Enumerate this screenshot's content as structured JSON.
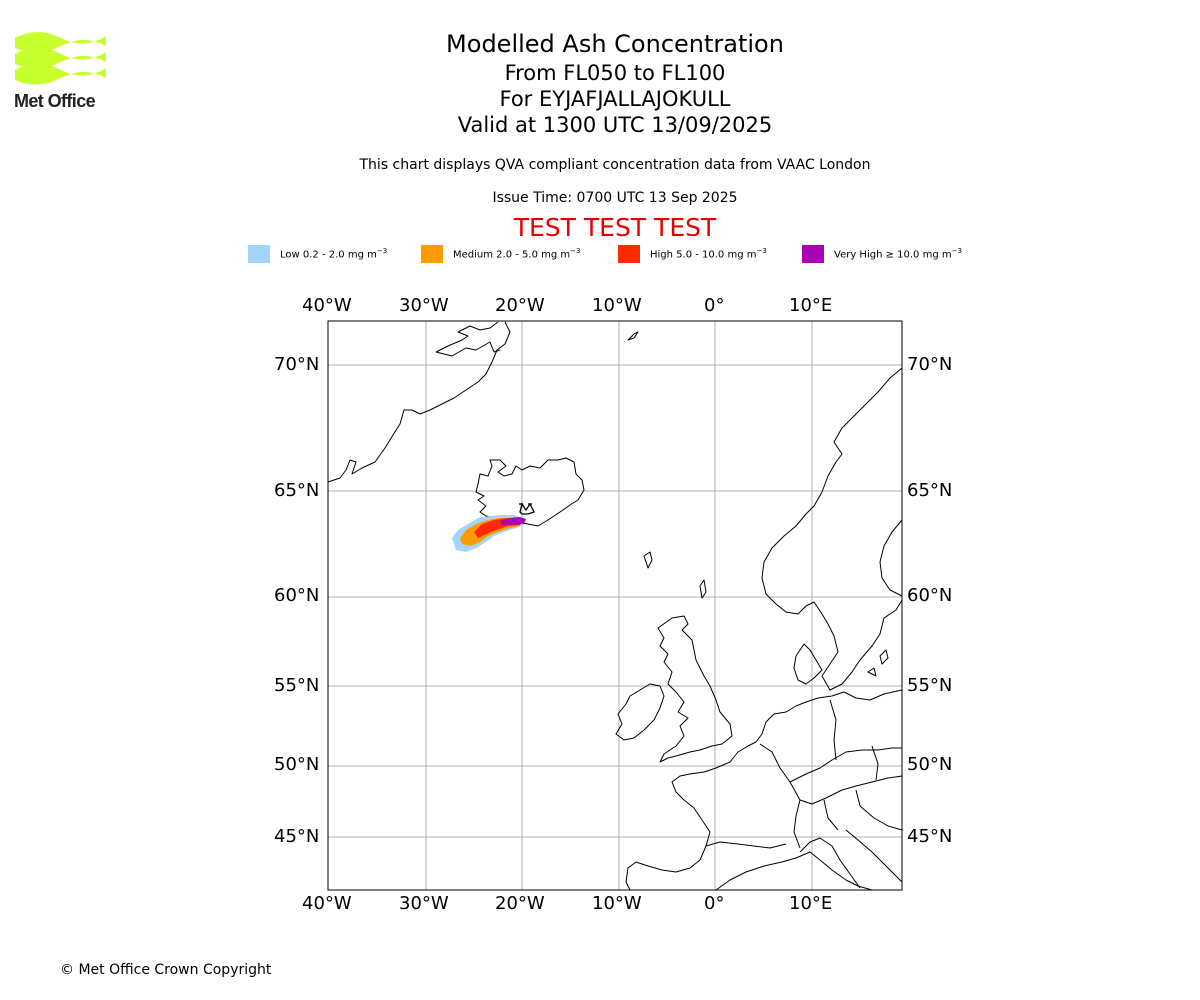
{
  "logo": {
    "text": "Met Office",
    "color": "#c8ff2e"
  },
  "titles": {
    "main": "Modelled Ash Concentration",
    "levels": "From FL050 to FL100",
    "volcano": "For EYJAFJALLAJOKULL",
    "valid": "Valid at 1300 UTC 13/09/2025"
  },
  "description": "This chart displays QVA compliant concentration data from VAAC London",
  "issue_time": "Issue Time: 0700 UTC 13 Sep 2025",
  "test_banner": "TEST TEST TEST",
  "legend": [
    {
      "label": "Low 0.2 - 2.0 mg m",
      "unit_exp": "−3",
      "color": "#a3d4fb"
    },
    {
      "label": "Medium 2.0 - 5.0 mg m",
      "unit_exp": "−3",
      "color": "#ff9a00"
    },
    {
      "label": "High 5.0 - 10.0 mg m",
      "unit_exp": "−3",
      "color": "#ff2a00"
    },
    {
      "label": "Very High  ≥  10.0 mg m",
      "unit_exp": "−3",
      "color": "#a800b4"
    }
  ],
  "map": {
    "longitude_labels": [
      "40°W",
      "30°W",
      "20°W",
      "10°W",
      "0°",
      "10°E"
    ],
    "latitude_labels": [
      "70°N",
      "65°N",
      "60°N",
      "55°N",
      "50°N",
      "45°N"
    ],
    "gridlines": true,
    "volcano_marker": "EYJAFJALLAJOKULL"
  },
  "copyright": "© Met Office Crown Copyright"
}
